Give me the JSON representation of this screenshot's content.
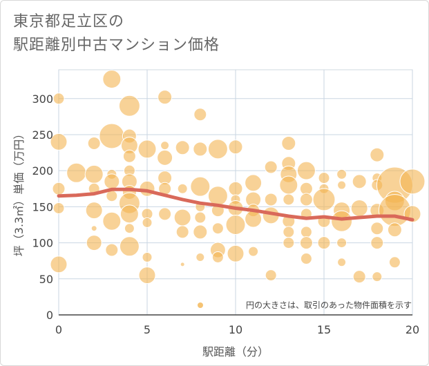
{
  "title_line1": "東京都足立区の",
  "title_line2": "駅距離別中古マンション価格",
  "legend_note": "円の大きさは、取引のあった物件面積を示す",
  "chart_data": {
    "type": "scatter",
    "title": "東京都足立区の 駅距離別中古マンション価格",
    "xlabel": "駅距離（分）",
    "ylabel": "坪（3.3㎡）単価（万円）",
    "xlim": [
      0,
      20
    ],
    "ylim": [
      0,
      340
    ],
    "xticks": [
      0,
      5,
      10,
      15,
      20
    ],
    "yticks": [
      0,
      50,
      100,
      150,
      200,
      250,
      300
    ],
    "grid": true,
    "bubble_color": "#f3b451",
    "line_color": "#d9695a",
    "points": [
      {
        "x": 0,
        "y": 300,
        "s": 8
      },
      {
        "x": 0,
        "y": 240,
        "s": 12
      },
      {
        "x": 0,
        "y": 175,
        "s": 9
      },
      {
        "x": 0,
        "y": 148,
        "s": 8
      },
      {
        "x": 0,
        "y": 70,
        "s": 12
      },
      {
        "x": 1,
        "y": 197,
        "s": 14
      },
      {
        "x": 2,
        "y": 238,
        "s": 9
      },
      {
        "x": 2,
        "y": 195,
        "s": 13
      },
      {
        "x": 2,
        "y": 175,
        "s": 8
      },
      {
        "x": 2,
        "y": 145,
        "s": 12
      },
      {
        "x": 2,
        "y": 120,
        "s": 4
      },
      {
        "x": 2,
        "y": 100,
        "s": 11
      },
      {
        "x": 3,
        "y": 327,
        "s": 13
      },
      {
        "x": 3,
        "y": 248,
        "s": 18
      },
      {
        "x": 3,
        "y": 195,
        "s": 7
      },
      {
        "x": 3,
        "y": 185,
        "s": 11
      },
      {
        "x": 3,
        "y": 165,
        "s": 8
      },
      {
        "x": 3,
        "y": 130,
        "s": 13
      },
      {
        "x": 3,
        "y": 90,
        "s": 9
      },
      {
        "x": 4,
        "y": 290,
        "s": 15
      },
      {
        "x": 4,
        "y": 248,
        "s": 10
      },
      {
        "x": 4,
        "y": 235,
        "s": 12
      },
      {
        "x": 4,
        "y": 220,
        "s": 9
      },
      {
        "x": 4,
        "y": 200,
        "s": 8
      },
      {
        "x": 4,
        "y": 185,
        "s": 11
      },
      {
        "x": 4,
        "y": 170,
        "s": 10
      },
      {
        "x": 4,
        "y": 155,
        "s": 15
      },
      {
        "x": 4,
        "y": 140,
        "s": 13
      },
      {
        "x": 4,
        "y": 120,
        "s": 7
      },
      {
        "x": 4,
        "y": 95,
        "s": 14
      },
      {
        "x": 5,
        "y": 230,
        "s": 13
      },
      {
        "x": 5,
        "y": 175,
        "s": 11
      },
      {
        "x": 5,
        "y": 140,
        "s": 8
      },
      {
        "x": 5,
        "y": 128,
        "s": 7
      },
      {
        "x": 5,
        "y": 80,
        "s": 7
      },
      {
        "x": 5,
        "y": 55,
        "s": 12
      },
      {
        "x": 6,
        "y": 302,
        "s": 10
      },
      {
        "x": 6,
        "y": 235,
        "s": 6
      },
      {
        "x": 6,
        "y": 218,
        "s": 11
      },
      {
        "x": 6,
        "y": 190,
        "s": 10
      },
      {
        "x": 6,
        "y": 175,
        "s": 9
      },
      {
        "x": 6,
        "y": 140,
        "s": 9
      },
      {
        "x": 7,
        "y": 232,
        "s": 10
      },
      {
        "x": 7,
        "y": 175,
        "s": 7
      },
      {
        "x": 7,
        "y": 135,
        "s": 12
      },
      {
        "x": 7,
        "y": 115,
        "s": 9
      },
      {
        "x": 7,
        "y": 70,
        "s": 3
      },
      {
        "x": 8,
        "y": 278,
        "s": 9
      },
      {
        "x": 8,
        "y": 230,
        "s": 10
      },
      {
        "x": 8,
        "y": 178,
        "s": 14
      },
      {
        "x": 8,
        "y": 150,
        "s": 7
      },
      {
        "x": 8,
        "y": 135,
        "s": 8
      },
      {
        "x": 8,
        "y": 115,
        "s": 10
      },
      {
        "x": 8,
        "y": 80,
        "s": 6
      },
      {
        "x": 9,
        "y": 230,
        "s": 14
      },
      {
        "x": 9,
        "y": 165,
        "s": 14
      },
      {
        "x": 9,
        "y": 145,
        "s": 9
      },
      {
        "x": 9,
        "y": 120,
        "s": 8
      },
      {
        "x": 9,
        "y": 90,
        "s": 11
      },
      {
        "x": 9,
        "y": 80,
        "s": 8
      },
      {
        "x": 10,
        "y": 233,
        "s": 10
      },
      {
        "x": 10,
        "y": 175,
        "s": 10
      },
      {
        "x": 10,
        "y": 160,
        "s": 7
      },
      {
        "x": 10,
        "y": 148,
        "s": 11
      },
      {
        "x": 10,
        "y": 125,
        "s": 14
      },
      {
        "x": 10,
        "y": 85,
        "s": 12
      },
      {
        "x": 11,
        "y": 183,
        "s": 12
      },
      {
        "x": 11,
        "y": 160,
        "s": 11
      },
      {
        "x": 11,
        "y": 145,
        "s": 9
      },
      {
        "x": 11,
        "y": 133,
        "s": 12
      },
      {
        "x": 11,
        "y": 88,
        "s": 7
      },
      {
        "x": 12,
        "y": 205,
        "s": 9
      },
      {
        "x": 12,
        "y": 160,
        "s": 9
      },
      {
        "x": 12,
        "y": 138,
        "s": 12
      },
      {
        "x": 12,
        "y": 55,
        "s": 8
      },
      {
        "x": 13,
        "y": 238,
        "s": 10
      },
      {
        "x": 13,
        "y": 210,
        "s": 10
      },
      {
        "x": 13,
        "y": 195,
        "s": 12
      },
      {
        "x": 13,
        "y": 180,
        "s": 13
      },
      {
        "x": 13,
        "y": 160,
        "s": 8
      },
      {
        "x": 13,
        "y": 130,
        "s": 9
      },
      {
        "x": 13,
        "y": 115,
        "s": 8
      },
      {
        "x": 13,
        "y": 100,
        "s": 8
      },
      {
        "x": 14,
        "y": 200,
        "s": 13
      },
      {
        "x": 14,
        "y": 175,
        "s": 9
      },
      {
        "x": 14,
        "y": 160,
        "s": 9
      },
      {
        "x": 14,
        "y": 140,
        "s": 8
      },
      {
        "x": 14,
        "y": 115,
        "s": 8
      },
      {
        "x": 14,
        "y": 100,
        "s": 9
      },
      {
        "x": 14,
        "y": 78,
        "s": 8
      },
      {
        "x": 15,
        "y": 190,
        "s": 8
      },
      {
        "x": 15,
        "y": 175,
        "s": 7
      },
      {
        "x": 15,
        "y": 160,
        "s": 16
      },
      {
        "x": 15,
        "y": 130,
        "s": 9
      },
      {
        "x": 15,
        "y": 100,
        "s": 9
      },
      {
        "x": 16,
        "y": 195,
        "s": 7
      },
      {
        "x": 16,
        "y": 180,
        "s": 6
      },
      {
        "x": 16,
        "y": 145,
        "s": 12
      },
      {
        "x": 16,
        "y": 130,
        "s": 15
      },
      {
        "x": 16,
        "y": 100,
        "s": 7
      },
      {
        "x": 16,
        "y": 73,
        "s": 6
      },
      {
        "x": 17,
        "y": 185,
        "s": 10
      },
      {
        "x": 17,
        "y": 148,
        "s": 12
      },
      {
        "x": 17,
        "y": 53,
        "s": 9
      },
      {
        "x": 18,
        "y": 222,
        "s": 10
      },
      {
        "x": 18,
        "y": 190,
        "s": 7
      },
      {
        "x": 18,
        "y": 180,
        "s": 8
      },
      {
        "x": 18,
        "y": 145,
        "s": 10
      },
      {
        "x": 18,
        "y": 120,
        "s": 9
      },
      {
        "x": 18,
        "y": 100,
        "s": 9
      },
      {
        "x": 18,
        "y": 53,
        "s": 7
      },
      {
        "x": 19,
        "y": 180,
        "s": 26
      },
      {
        "x": 19,
        "y": 158,
        "s": 14
      },
      {
        "x": 19,
        "y": 145,
        "s": 23
      },
      {
        "x": 19,
        "y": 118,
        "s": 10
      },
      {
        "x": 19,
        "y": 73,
        "s": 8
      },
      {
        "x": 20,
        "y": 185,
        "s": 18
      },
      {
        "x": 20,
        "y": 140,
        "s": 12
      }
    ],
    "trend": [
      {
        "x": 0,
        "y": 165
      },
      {
        "x": 1,
        "y": 166
      },
      {
        "x": 2,
        "y": 168
      },
      {
        "x": 3,
        "y": 174
      },
      {
        "x": 4,
        "y": 174
      },
      {
        "x": 5,
        "y": 172
      },
      {
        "x": 6,
        "y": 166
      },
      {
        "x": 7,
        "y": 160
      },
      {
        "x": 8,
        "y": 155
      },
      {
        "x": 9,
        "y": 152
      },
      {
        "x": 10,
        "y": 148
      },
      {
        "x": 11,
        "y": 145
      },
      {
        "x": 12,
        "y": 141
      },
      {
        "x": 13,
        "y": 137
      },
      {
        "x": 14,
        "y": 134
      },
      {
        "x": 15,
        "y": 136
      },
      {
        "x": 16,
        "y": 133
      },
      {
        "x": 17,
        "y": 135
      },
      {
        "x": 18,
        "y": 137
      },
      {
        "x": 19,
        "y": 137
      },
      {
        "x": 20,
        "y": 132
      }
    ]
  }
}
